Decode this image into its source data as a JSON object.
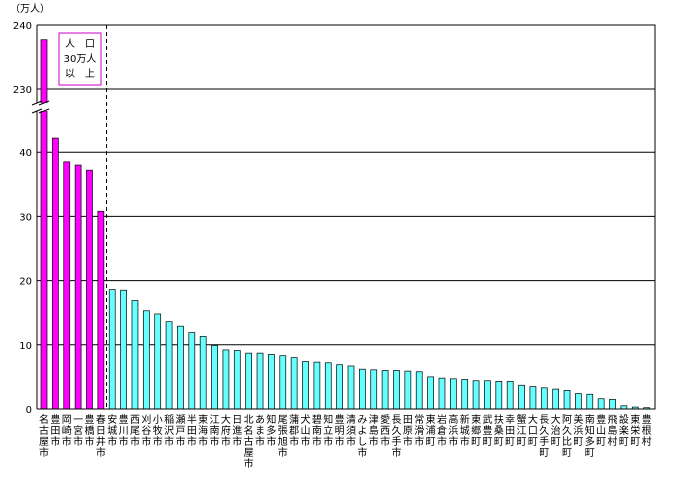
{
  "chart_data": {
    "type": "bar",
    "ylabel": "（万人）",
    "y_ticks": [
      "0",
      "10",
      "20",
      "30",
      "40",
      "230",
      "240"
    ],
    "y_axis_break": {
      "lower_range": [
        0,
        45
      ],
      "upper_range": [
        227,
        241
      ]
    },
    "grid": true,
    "legend": "none",
    "annotation": {
      "lines": [
        "人　口",
        "30万人",
        "以　上"
      ]
    },
    "colors": {
      "group_30man_plus": "#ff00ff",
      "group_other": "#66ffff",
      "grid": "#000000",
      "annotation_border": "#cc00cc"
    },
    "categories": [
      "名古屋市",
      "豊田市",
      "岡崎市",
      "一宮市",
      "豊橋市",
      "春日井市",
      "安城市",
      "豊川市",
      "西尾市",
      "刈谷市",
      "小牧市",
      "稲沢市",
      "瀬戸市",
      "半田市",
      "東海市",
      "江南市",
      "大府市",
      "日進市",
      "北名古屋市",
      "あま市",
      "知多市",
      "尾張旭市",
      "蒲郡市",
      "犬山市",
      "碧南市",
      "知立市",
      "豊明市",
      "清須市",
      "みよし市",
      "津島市",
      "愛西市",
      "長久手市",
      "田原市",
      "常滑市",
      "東浦町",
      "岩倉市",
      "高浜市",
      "新城市",
      "東郷町",
      "武豊町",
      "扶桑町",
      "幸田町",
      "蟹江町",
      "大口町",
      "長久手町",
      "大治町",
      "阿久比町",
      "美浜町",
      "南知多町",
      "豊山町",
      "飛島村",
      "設楽町",
      "東栄町",
      "豊根村"
    ],
    "values": [
      237.7,
      42.2,
      38.5,
      38.0,
      37.2,
      30.8,
      18.6,
      18.5,
      16.9,
      15.3,
      14.8,
      13.6,
      12.9,
      11.9,
      11.3,
      9.9,
      9.2,
      9.1,
      8.7,
      8.7,
      8.5,
      8.3,
      8.0,
      7.4,
      7.3,
      7.2,
      6.9,
      6.7,
      6.2,
      6.1,
      6.0,
      6.0,
      5.9,
      5.8,
      5.0,
      4.8,
      4.7,
      4.6,
      4.4,
      4.4,
      4.3,
      4.3,
      3.7,
      3.5,
      3.3,
      3.1,
      2.9,
      2.4,
      2.3,
      1.6,
      1.5,
      0.5,
      0.3,
      0.2
    ],
    "highlight_count": 6
  }
}
